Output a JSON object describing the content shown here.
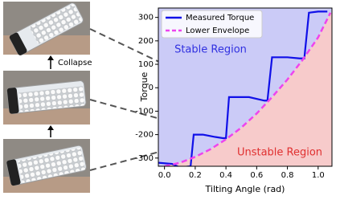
{
  "figure": {
    "arrow_label": "Collapse"
  },
  "chart_data": {
    "type": "line",
    "xlabel": "Tilting Angle (rad)",
    "ylabel": "Torque",
    "xlim": [
      -0.04,
      1.09
    ],
    "ylim": [
      -335,
      340
    ],
    "xticks": [
      {
        "value": 0,
        "label": "0.0"
      },
      0.2,
      0.4,
      0.6,
      0.8,
      {
        "value": 1,
        "label": "1.0"
      }
    ],
    "yticks": [
      -300,
      -200,
      -100,
      0,
      100,
      200,
      300
    ],
    "legend": "upper left",
    "series": [
      {
        "name": "Measured Torque",
        "color": "#1010e8",
        "dashed": false,
        "x": [
          -0.04,
          0.05,
          0.1,
          0.17,
          0.19,
          0.25,
          0.33,
          0.38,
          0.4,
          0.42,
          0.55,
          0.65,
          0.67,
          0.7,
          0.8,
          0.88,
          0.91,
          0.94,
          1.0,
          1.06
        ],
        "values": [
          -320,
          -325,
          -340,
          -335,
          -200,
          -200,
          -210,
          -215,
          -215,
          -40,
          -40,
          -55,
          -55,
          130,
          130,
          125,
          125,
          320,
          325,
          325
        ]
      },
      {
        "name": "Lower Envelope",
        "color": "#ee44ee",
        "dashed": true,
        "x": [
          0,
          0.1,
          0.2,
          0.3,
          0.4,
          0.5,
          0.6,
          0.7,
          0.8,
          0.9,
          1.0,
          1.08
        ],
        "values": [
          -335,
          -320,
          -295,
          -262,
          -220,
          -170,
          -110,
          -40,
          35,
          120,
          215,
          320
        ]
      }
    ],
    "annotations": [
      {
        "text": "Stable Region",
        "color": "#3030e0",
        "fill": "#cbcbf7"
      },
      {
        "text": "Unstable Region",
        "color": "#e03030",
        "fill": "#f7cbcb"
      }
    ]
  }
}
